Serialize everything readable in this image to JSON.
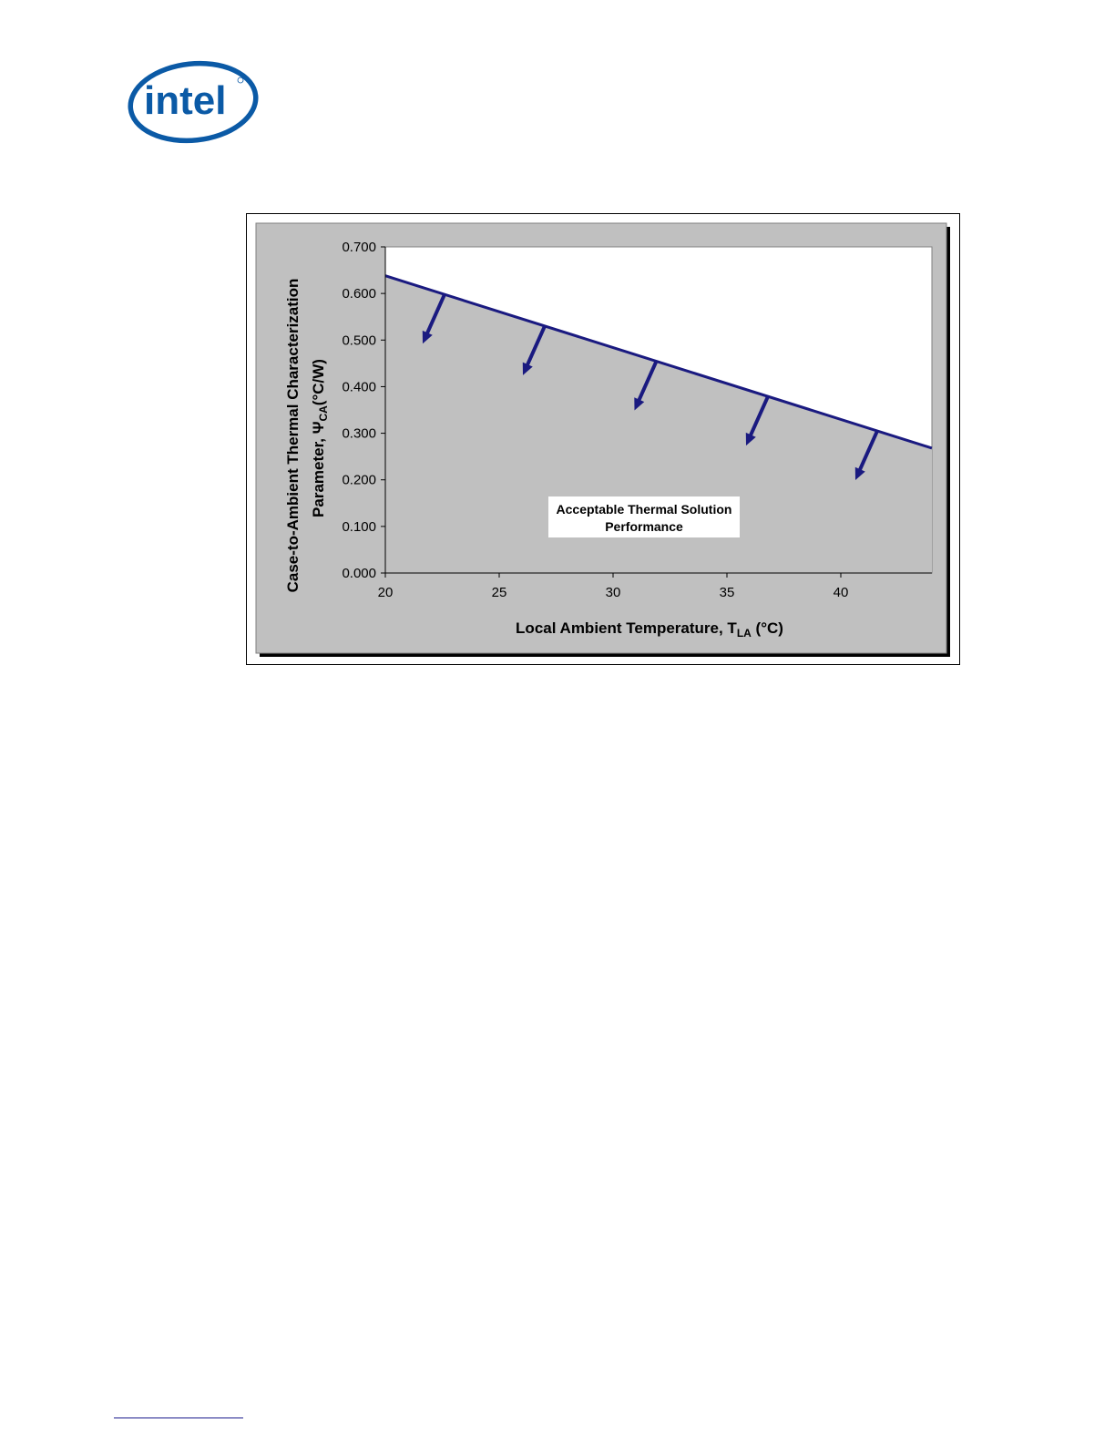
{
  "logo": {
    "text": "intel",
    "color": "#0b5aa6"
  },
  "chart_data": {
    "type": "area",
    "title": "",
    "xlabel": {
      "main": "Local Ambient Temperature, T",
      "sub": "LA",
      "tail": " (°C)"
    },
    "ylabel": {
      "line1": "Case-to-Ambient Thermal Characterization",
      "line2_main": "Parameter, Ψ",
      "line2_sub": "CA",
      "line2_tail": "(°C/W)"
    },
    "xlim": [
      20,
      44
    ],
    "ylim": [
      0,
      0.7
    ],
    "xticks": [
      "20",
      "25",
      "30",
      "35",
      "40"
    ],
    "yticks": [
      "0.000",
      "0.100",
      "0.200",
      "0.300",
      "0.400",
      "0.500",
      "0.600",
      "0.700"
    ],
    "grid": false,
    "series": [
      {
        "x": [
          20,
          44
        ],
        "y": [
          0.638,
          0.268
        ]
      }
    ],
    "annotation": {
      "line1": "Acceptable Thermal Solution",
      "line2": "Performance"
    },
    "arrows_at_x": [
      22.6,
      27,
      31.9,
      36.8,
      41.6
    ],
    "colors": {
      "line": "#1a1a80",
      "fill": "#c0c0c0",
      "plot_bg": "#ffffff",
      "arrow": "#1a1a80"
    }
  }
}
